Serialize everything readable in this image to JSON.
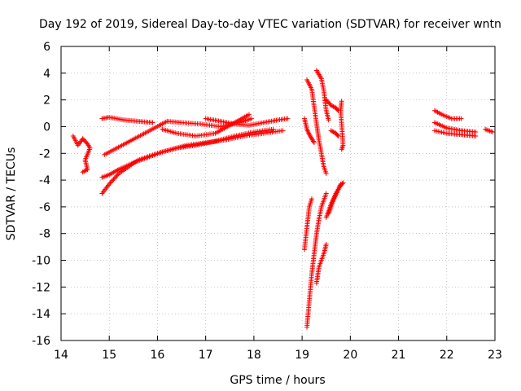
{
  "chart_data": {
    "type": "scatter",
    "title": "Day 192 of 2019, Sidereal Day-to-day VTEC variation (SDTVAR) for receiver wntn",
    "xlabel": "GPS time / hours",
    "ylabel": "SDTVAR / TECUs",
    "xlim": [
      14,
      23
    ],
    "ylim": [
      -16,
      6
    ],
    "xticks": [
      14,
      15,
      16,
      17,
      18,
      19,
      20,
      21,
      22,
      23
    ],
    "yticks": [
      -16,
      -14,
      -12,
      -10,
      -8,
      -6,
      -4,
      -2,
      0,
      2,
      4,
      6
    ],
    "grid": true,
    "marker": "+",
    "series_color": "#ff0000",
    "tracks": [
      {
        "name": "track-1",
        "points": [
          [
            14.25,
            -0.7
          ],
          [
            14.35,
            -1.4
          ],
          [
            14.45,
            -0.9
          ],
          [
            14.55,
            -1.3
          ],
          [
            14.6,
            -1.6
          ],
          [
            14.5,
            -2.5
          ],
          [
            14.55,
            -3.2
          ],
          [
            14.45,
            -3.4
          ]
        ]
      },
      {
        "name": "track-2",
        "points": [
          [
            14.85,
            0.6
          ],
          [
            15.0,
            0.7
          ],
          [
            15.3,
            0.5
          ],
          [
            15.6,
            0.4
          ],
          [
            15.9,
            0.3
          ]
        ]
      },
      {
        "name": "track-3",
        "points": [
          [
            14.85,
            -5.0
          ],
          [
            15.0,
            -4.3
          ],
          [
            15.2,
            -3.5
          ],
          [
            15.4,
            -3.0
          ],
          [
            15.6,
            -2.5
          ],
          [
            16.0,
            -2.0
          ],
          [
            16.3,
            -1.7
          ],
          [
            16.6,
            -1.4
          ],
          [
            17.0,
            -1.2
          ],
          [
            17.4,
            -1.0
          ],
          [
            17.8,
            -0.7
          ],
          [
            18.2,
            -0.5
          ],
          [
            18.6,
            -0.3
          ]
        ]
      },
      {
        "name": "track-4",
        "points": [
          [
            14.85,
            -3.8
          ],
          [
            15.0,
            -3.6
          ],
          [
            15.2,
            -3.2
          ],
          [
            15.5,
            -2.7
          ],
          [
            15.8,
            -2.3
          ],
          [
            16.1,
            -1.9
          ],
          [
            16.4,
            -1.6
          ],
          [
            16.8,
            -1.4
          ],
          [
            17.2,
            -1.1
          ],
          [
            17.6,
            -0.7
          ],
          [
            18.0,
            -0.4
          ],
          [
            18.4,
            -0.2
          ]
        ]
      },
      {
        "name": "track-5",
        "points": [
          [
            14.9,
            -2.1
          ],
          [
            16.2,
            0.4
          ],
          [
            16.5,
            0.3
          ],
          [
            16.9,
            0.2
          ],
          [
            17.3,
            0.0
          ],
          [
            17.7,
            0.3
          ],
          [
            17.95,
            0.6
          ]
        ]
      },
      {
        "name": "track-6",
        "points": [
          [
            16.1,
            -0.2
          ],
          [
            16.4,
            -0.5
          ],
          [
            16.8,
            -0.7
          ],
          [
            17.2,
            -0.5
          ],
          [
            17.6,
            0.3
          ],
          [
            17.9,
            0.9
          ]
        ]
      },
      {
        "name": "track-7",
        "points": [
          [
            17.0,
            0.6
          ],
          [
            17.3,
            0.4
          ],
          [
            17.6,
            0.2
          ],
          [
            17.9,
            0.1
          ],
          [
            18.2,
            0.3
          ],
          [
            18.5,
            0.5
          ],
          [
            18.7,
            0.6
          ]
        ]
      },
      {
        "name": "track-8",
        "points": [
          [
            19.05,
            0.6
          ],
          [
            19.1,
            -0.2
          ],
          [
            19.15,
            -0.6
          ],
          [
            19.25,
            -1.2
          ]
        ]
      },
      {
        "name": "track-9",
        "points": [
          [
            19.1,
            3.5
          ],
          [
            19.2,
            2.8
          ],
          [
            19.25,
            1.5
          ],
          [
            19.3,
            0.2
          ],
          [
            19.35,
            -1.0
          ],
          [
            19.45,
            -3.0
          ],
          [
            19.5,
            -3.5
          ]
        ]
      },
      {
        "name": "track-10",
        "points": [
          [
            19.3,
            4.2
          ],
          [
            19.4,
            3.6
          ],
          [
            19.45,
            2.7
          ],
          [
            19.5,
            1.2
          ],
          [
            19.55,
            0.5
          ]
        ]
      },
      {
        "name": "track-11",
        "points": [
          [
            19.5,
            2.0
          ],
          [
            19.6,
            1.6
          ],
          [
            19.7,
            1.4
          ],
          [
            19.75,
            1.2
          ]
        ]
      },
      {
        "name": "track-12",
        "points": [
          [
            19.6,
            -0.3
          ],
          [
            19.7,
            -0.5
          ],
          [
            19.75,
            -0.7
          ]
        ]
      },
      {
        "name": "track-13",
        "points": [
          [
            19.82,
            1.9
          ],
          [
            19.8,
            1.2
          ],
          [
            19.85,
            -1.4
          ],
          [
            19.82,
            -1.7
          ]
        ]
      },
      {
        "name": "track-14",
        "points": [
          [
            19.1,
            -15.0
          ],
          [
            19.15,
            -13.0
          ],
          [
            19.2,
            -11.0
          ],
          [
            19.25,
            -9.5
          ],
          [
            19.3,
            -8.0
          ],
          [
            19.35,
            -6.9
          ],
          [
            19.4,
            -6.0
          ],
          [
            19.5,
            -5.0
          ]
        ]
      },
      {
        "name": "track-15",
        "points": [
          [
            19.05,
            -9.2
          ],
          [
            19.1,
            -7.5
          ],
          [
            19.15,
            -6.0
          ],
          [
            19.2,
            -5.4
          ]
        ]
      },
      {
        "name": "track-16",
        "points": [
          [
            19.3,
            -11.7
          ],
          [
            19.35,
            -10.5
          ],
          [
            19.45,
            -9.5
          ],
          [
            19.5,
            -8.8
          ]
        ]
      },
      {
        "name": "track-17",
        "points": [
          [
            19.5,
            -6.8
          ],
          [
            19.6,
            -5.8
          ],
          [
            19.7,
            -5.0
          ],
          [
            19.8,
            -4.4
          ],
          [
            19.85,
            -4.2
          ]
        ]
      },
      {
        "name": "track-18",
        "points": [
          [
            19.55,
            -6.5
          ],
          [
            19.65,
            -5.5
          ],
          [
            19.75,
            -4.7
          ],
          [
            19.8,
            -4.3
          ]
        ]
      },
      {
        "name": "track-19",
        "points": [
          [
            21.75,
            1.2
          ],
          [
            21.9,
            0.9
          ],
          [
            22.1,
            0.6
          ],
          [
            22.3,
            0.6
          ]
        ]
      },
      {
        "name": "track-20",
        "points": [
          [
            21.75,
            0.3
          ],
          [
            22.0,
            -0.1
          ],
          [
            22.3,
            -0.3
          ],
          [
            22.6,
            -0.4
          ]
        ]
      },
      {
        "name": "track-21",
        "points": [
          [
            21.75,
            -0.3
          ],
          [
            22.0,
            -0.5
          ],
          [
            22.3,
            -0.6
          ],
          [
            22.6,
            -0.7
          ]
        ]
      },
      {
        "name": "track-22",
        "points": [
          [
            22.8,
            -0.2
          ],
          [
            22.95,
            -0.4
          ]
        ]
      }
    ]
  }
}
